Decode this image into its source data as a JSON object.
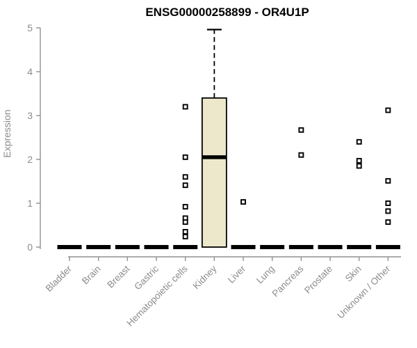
{
  "chart_data": {
    "type": "box",
    "title": "ENSG00000258899 - OR4U1P",
    "xlabel": "",
    "ylabel": "Expression",
    "ylim": [
      0,
      5
    ],
    "yticks": [
      0,
      1,
      2,
      3,
      4,
      5
    ],
    "grid": false,
    "legend": false,
    "categories": [
      "Bladder",
      "Brain",
      "Breast",
      "Gastric",
      "Hematopoietic cells",
      "Kidney",
      "Liver",
      "Lung",
      "Pancreas",
      "Prostate",
      "Skin",
      "Unknown / Other"
    ],
    "boxes": [
      {
        "category": "Bladder",
        "whisker_low": 0,
        "q1": 0,
        "median": 0,
        "q3": 0,
        "whisker_high": 0,
        "outliers": []
      },
      {
        "category": "Brain",
        "whisker_low": 0,
        "q1": 0,
        "median": 0,
        "q3": 0,
        "whisker_high": 0,
        "outliers": []
      },
      {
        "category": "Breast",
        "whisker_low": 0,
        "q1": 0,
        "median": 0,
        "q3": 0,
        "whisker_high": 0,
        "outliers": []
      },
      {
        "category": "Gastric",
        "whisker_low": 0,
        "q1": 0,
        "median": 0,
        "q3": 0,
        "whisker_high": 0,
        "outliers": []
      },
      {
        "category": "Hematopoietic cells",
        "whisker_low": 0,
        "q1": 0,
        "median": 0,
        "q3": 0,
        "whisker_high": 0,
        "outliers": [
          3.2,
          2.05,
          1.6,
          1.41,
          0.92,
          0.66,
          0.57,
          0.35,
          0.24
        ]
      },
      {
        "category": "Kidney",
        "whisker_low": 0,
        "q1": 0,
        "median": 2.05,
        "q3": 3.4,
        "whisker_high": 4.96,
        "outliers": []
      },
      {
        "category": "Liver",
        "whisker_low": 0,
        "q1": 0,
        "median": 0,
        "q3": 0,
        "whisker_high": 0,
        "outliers": [
          1.03
        ]
      },
      {
        "category": "Lung",
        "whisker_low": 0,
        "q1": 0,
        "median": 0,
        "q3": 0,
        "whisker_high": 0,
        "outliers": []
      },
      {
        "category": "Pancreas",
        "whisker_low": 0,
        "q1": 0,
        "median": 0,
        "q3": 0,
        "whisker_high": 0,
        "outliers": [
          2.67,
          2.1
        ]
      },
      {
        "category": "Prostate",
        "whisker_low": 0,
        "q1": 0,
        "median": 0,
        "q3": 0,
        "whisker_high": 0,
        "outliers": []
      },
      {
        "category": "Skin",
        "whisker_low": 0,
        "q1": 0,
        "median": 0,
        "q3": 0,
        "whisker_high": 0,
        "outliers": [
          2.4,
          1.97,
          1.85
        ]
      },
      {
        "category": "Unknown / Other",
        "whisker_low": 0,
        "q1": 0,
        "median": 0,
        "q3": 0,
        "whisker_high": 0,
        "outliers": [
          3.12,
          1.51,
          1.0,
          0.82,
          0.57
        ]
      }
    ],
    "styles": {
      "box_fill": "#EDE8CC",
      "box_border": "#000000",
      "median_color": "#000000",
      "whisker_color": "#000000",
      "outlier_color": "#000000",
      "axis_color": "#919191",
      "label_color": "#8C8C8C",
      "title_color": "#000000",
      "background": "#FFFFFF"
    }
  }
}
